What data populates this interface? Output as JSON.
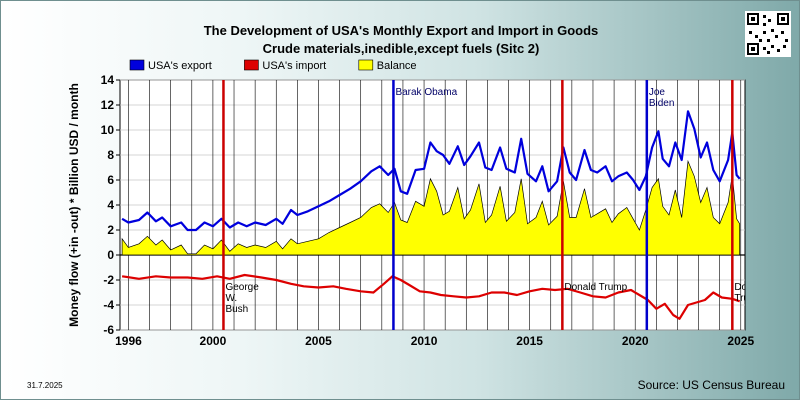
{
  "chart_data": {
    "type": "line",
    "title": "The Development of USA's Monthly Export and Import in Goods",
    "subtitle": "Crude materials,inedible,except fuels (Sitc 2)",
    "ylabel": "Money flow (+in -out) * Billion USD / month",
    "xlabel": "",
    "x_ticks": [
      1996,
      2000,
      2005,
      2010,
      2015,
      2020,
      2025
    ],
    "y_ticks": [
      -6,
      -4,
      -2,
      0,
      2,
      4,
      6,
      8,
      10,
      12,
      14
    ],
    "xlim": [
      1995.6,
      2025.2
    ],
    "ylim": [
      -6,
      14
    ],
    "grid": true,
    "legend_position": "top-left",
    "series": [
      {
        "name": "USA's export",
        "color": "#0000dd",
        "points": [
          [
            1995.7,
            2.9
          ],
          [
            1996.0,
            2.6
          ],
          [
            1996.5,
            2.8
          ],
          [
            1996.9,
            3.4
          ],
          [
            1997.3,
            2.7
          ],
          [
            1997.6,
            3.0
          ],
          [
            1998.0,
            2.3
          ],
          [
            1998.5,
            2.6
          ],
          [
            1998.8,
            2.0
          ],
          [
            1999.2,
            2.0
          ],
          [
            1999.6,
            2.6
          ],
          [
            2000.0,
            2.3
          ],
          [
            2000.4,
            2.9
          ],
          [
            2000.8,
            2.2
          ],
          [
            2001.2,
            2.6
          ],
          [
            2001.6,
            2.3
          ],
          [
            2002.0,
            2.6
          ],
          [
            2002.5,
            2.4
          ],
          [
            2003.0,
            2.9
          ],
          [
            2003.3,
            2.5
          ],
          [
            2003.7,
            3.6
          ],
          [
            2004.0,
            3.2
          ],
          [
            2004.5,
            3.5
          ],
          [
            2005.0,
            3.9
          ],
          [
            2005.5,
            4.3
          ],
          [
            2006.0,
            4.8
          ],
          [
            2006.5,
            5.3
          ],
          [
            2007.0,
            5.9
          ],
          [
            2007.5,
            6.7
          ],
          [
            2007.9,
            7.1
          ],
          [
            2008.3,
            6.4
          ],
          [
            2008.6,
            6.9
          ],
          [
            2008.9,
            5.1
          ],
          [
            2009.2,
            4.9
          ],
          [
            2009.6,
            6.8
          ],
          [
            2010.0,
            6.9
          ],
          [
            2010.3,
            9.0
          ],
          [
            2010.6,
            8.3
          ],
          [
            2010.9,
            8.0
          ],
          [
            2011.2,
            7.3
          ],
          [
            2011.6,
            8.7
          ],
          [
            2011.9,
            7.2
          ],
          [
            2012.2,
            7.9
          ],
          [
            2012.6,
            9.0
          ],
          [
            2012.9,
            7.0
          ],
          [
            2013.2,
            6.8
          ],
          [
            2013.6,
            8.6
          ],
          [
            2013.9,
            6.9
          ],
          [
            2014.3,
            6.6
          ],
          [
            2014.6,
            9.3
          ],
          [
            2014.9,
            6.5
          ],
          [
            2015.3,
            5.9
          ],
          [
            2015.6,
            7.1
          ],
          [
            2015.9,
            5.1
          ],
          [
            2016.3,
            5.9
          ],
          [
            2016.6,
            8.6
          ],
          [
            2016.9,
            6.6
          ],
          [
            2017.2,
            6.0
          ],
          [
            2017.6,
            8.4
          ],
          [
            2017.9,
            6.8
          ],
          [
            2018.2,
            6.6
          ],
          [
            2018.6,
            7.1
          ],
          [
            2018.9,
            5.9
          ],
          [
            2019.2,
            6.3
          ],
          [
            2019.6,
            6.6
          ],
          [
            2019.9,
            6.0
          ],
          [
            2020.2,
            5.2
          ],
          [
            2020.5,
            6.3
          ],
          [
            2020.8,
            8.6
          ],
          [
            2021.1,
            9.9
          ],
          [
            2021.3,
            7.7
          ],
          [
            2021.6,
            7.1
          ],
          [
            2021.9,
            9.0
          ],
          [
            2022.2,
            7.6
          ],
          [
            2022.5,
            11.5
          ],
          [
            2022.8,
            10.1
          ],
          [
            2023.1,
            7.8
          ],
          [
            2023.4,
            9.0
          ],
          [
            2023.7,
            6.8
          ],
          [
            2024.0,
            5.9
          ],
          [
            2024.4,
            7.6
          ],
          [
            2024.6,
            9.8
          ],
          [
            2024.8,
            6.4
          ],
          [
            2024.95,
            6.1
          ]
        ]
      },
      {
        "name": "USA's import",
        "color": "#dd0000",
        "points": [
          [
            1995.7,
            -1.7
          ],
          [
            1996.5,
            -1.9
          ],
          [
            1997.3,
            -1.7
          ],
          [
            1998.0,
            -1.8
          ],
          [
            1998.8,
            -1.8
          ],
          [
            1999.5,
            -1.9
          ],
          [
            2000.2,
            -1.7
          ],
          [
            2000.8,
            -1.9
          ],
          [
            2001.5,
            -1.6
          ],
          [
            2002.3,
            -1.8
          ],
          [
            2003.0,
            -2.0
          ],
          [
            2003.7,
            -2.3
          ],
          [
            2004.3,
            -2.5
          ],
          [
            2005.0,
            -2.6
          ],
          [
            2005.7,
            -2.5
          ],
          [
            2006.3,
            -2.7
          ],
          [
            2007.0,
            -2.9
          ],
          [
            2007.6,
            -3.0
          ],
          [
            2008.1,
            -2.3
          ],
          [
            2008.5,
            -1.7
          ],
          [
            2008.9,
            -2.0
          ],
          [
            2009.3,
            -2.4
          ],
          [
            2009.8,
            -2.9
          ],
          [
            2010.3,
            -3.0
          ],
          [
            2010.8,
            -3.2
          ],
          [
            2011.4,
            -3.3
          ],
          [
            2012.0,
            -3.4
          ],
          [
            2012.6,
            -3.3
          ],
          [
            2013.2,
            -3.0
          ],
          [
            2013.8,
            -3.0
          ],
          [
            2014.4,
            -3.2
          ],
          [
            2015.0,
            -2.9
          ],
          [
            2015.6,
            -2.7
          ],
          [
            2016.2,
            -2.8
          ],
          [
            2016.8,
            -2.7
          ],
          [
            2017.4,
            -3.0
          ],
          [
            2018.0,
            -3.3
          ],
          [
            2018.6,
            -3.4
          ],
          [
            2019.2,
            -3.0
          ],
          [
            2019.8,
            -2.8
          ],
          [
            2020.2,
            -3.2
          ],
          [
            2020.6,
            -3.6
          ],
          [
            2021.0,
            -4.3
          ],
          [
            2021.4,
            -3.9
          ],
          [
            2021.8,
            -4.8
          ],
          [
            2022.1,
            -5.1
          ],
          [
            2022.5,
            -4.0
          ],
          [
            2022.9,
            -3.8
          ],
          [
            2023.3,
            -3.6
          ],
          [
            2023.7,
            -3.0
          ],
          [
            2024.1,
            -3.4
          ],
          [
            2024.6,
            -3.5
          ],
          [
            2024.95,
            -3.7
          ]
        ]
      },
      {
        "name": "Balance",
        "color": "#ffff00",
        "fill": true,
        "points": [
          [
            1995.7,
            1.3
          ],
          [
            1996.0,
            0.6
          ],
          [
            1996.5,
            0.9
          ],
          [
            1996.9,
            1.5
          ],
          [
            1997.3,
            0.8
          ],
          [
            1997.6,
            1.2
          ],
          [
            1998.0,
            0.4
          ],
          [
            1998.5,
            0.8
          ],
          [
            1998.8,
            0.1
          ],
          [
            1999.2,
            0.1
          ],
          [
            1999.6,
            0.8
          ],
          [
            2000.0,
            0.5
          ],
          [
            2000.4,
            1.2
          ],
          [
            2000.8,
            0.3
          ],
          [
            2001.2,
            0.9
          ],
          [
            2001.6,
            0.6
          ],
          [
            2002.0,
            0.8
          ],
          [
            2002.5,
            0.6
          ],
          [
            2003.0,
            1.1
          ],
          [
            2003.3,
            0.5
          ],
          [
            2003.7,
            1.3
          ],
          [
            2004.0,
            0.9
          ],
          [
            2004.5,
            1.1
          ],
          [
            2005.0,
            1.3
          ],
          [
            2005.5,
            1.8
          ],
          [
            2006.0,
            2.2
          ],
          [
            2006.5,
            2.6
          ],
          [
            2007.0,
            3.0
          ],
          [
            2007.5,
            3.8
          ],
          [
            2007.9,
            4.1
          ],
          [
            2008.3,
            3.4
          ],
          [
            2008.6,
            4.2
          ],
          [
            2008.9,
            2.8
          ],
          [
            2009.2,
            2.6
          ],
          [
            2009.6,
            4.3
          ],
          [
            2010.0,
            3.9
          ],
          [
            2010.3,
            6.1
          ],
          [
            2010.6,
            5.1
          ],
          [
            2010.9,
            3.2
          ],
          [
            2011.2,
            3.5
          ],
          [
            2011.6,
            5.4
          ],
          [
            2011.9,
            2.9
          ],
          [
            2012.2,
            3.6
          ],
          [
            2012.6,
            5.7
          ],
          [
            2012.9,
            2.6
          ],
          [
            2013.2,
            3.2
          ],
          [
            2013.6,
            5.5
          ],
          [
            2013.9,
            2.7
          ],
          [
            2014.3,
            3.4
          ],
          [
            2014.6,
            6.1
          ],
          [
            2014.9,
            2.5
          ],
          [
            2015.3,
            3.0
          ],
          [
            2015.6,
            4.3
          ],
          [
            2015.9,
            2.4
          ],
          [
            2016.3,
            3.1
          ],
          [
            2016.6,
            5.9
          ],
          [
            2016.9,
            3.0
          ],
          [
            2017.2,
            3.0
          ],
          [
            2017.6,
            5.3
          ],
          [
            2017.9,
            3.0
          ],
          [
            2018.2,
            3.3
          ],
          [
            2018.6,
            3.7
          ],
          [
            2018.9,
            2.6
          ],
          [
            2019.2,
            3.3
          ],
          [
            2019.6,
            3.8
          ],
          [
            2019.9,
            2.9
          ],
          [
            2020.2,
            2.0
          ],
          [
            2020.5,
            3.6
          ],
          [
            2020.8,
            5.4
          ],
          [
            2021.1,
            6.1
          ],
          [
            2021.3,
            3.9
          ],
          [
            2021.6,
            3.2
          ],
          [
            2021.9,
            5.2
          ],
          [
            2022.2,
            3.0
          ],
          [
            2022.5,
            7.5
          ],
          [
            2022.8,
            6.3
          ],
          [
            2023.1,
            4.2
          ],
          [
            2023.4,
            5.4
          ],
          [
            2023.7,
            3.0
          ],
          [
            2024.0,
            2.5
          ],
          [
            2024.4,
            4.2
          ],
          [
            2024.6,
            6.4
          ],
          [
            2024.8,
            2.9
          ],
          [
            2024.95,
            2.5
          ]
        ]
      }
    ],
    "annotations": [
      {
        "text": "George W. Bush",
        "year": 2000.5,
        "color": "#cc0000",
        "label_x": 2000.5,
        "label_y": -2.8
      },
      {
        "text": "Barak Obama",
        "year": 2008.55,
        "color": "#0000cc",
        "label_x": 2008.55,
        "label_y": 12.8
      },
      {
        "text": "Donald Trump",
        "year": 2016.55,
        "color": "#cc0000",
        "label_x": 2016.55,
        "label_y": -2.8
      },
      {
        "text": "Joe Biden",
        "year": 2020.55,
        "color": "#0000cc",
        "label_x": 2020.55,
        "label_y": 12.8
      },
      {
        "text": "Donald Trump",
        "year": 2024.6,
        "color": "#cc0000",
        "label_x": 2024.6,
        "label_y": -2.8
      }
    ]
  },
  "footer": {
    "date": "31.7.2025",
    "source": "Source: US Census Bureau"
  }
}
